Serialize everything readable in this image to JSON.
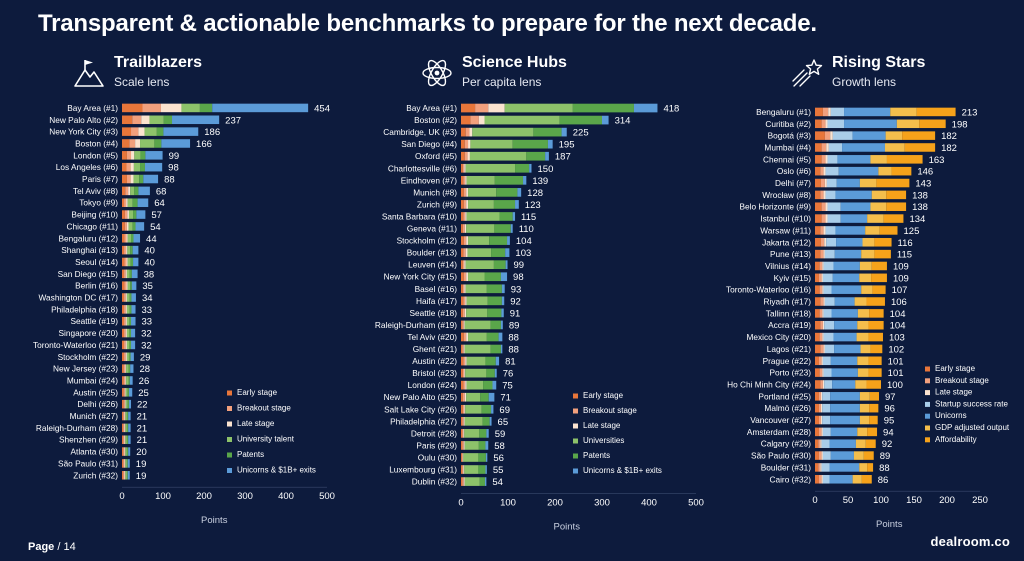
{
  "title": "Transparent & actionable benchmarks to prepare for the next decade.",
  "footer": {
    "page_label": "Page",
    "page_number": "/ 14",
    "brand": "dealroom.co"
  },
  "colors": {
    "early": "#e8763a",
    "breakout": "#f2a07d",
    "late": "#fbe3cf",
    "talent": "#8dc26a",
    "patents": "#5aa64a",
    "unicorns": "#5b9bd8",
    "startup": "#a9cde9",
    "gdp": "#f4be4c",
    "afford": "#f6a21a"
  },
  "chart_data": [
    {
      "type": "bar",
      "orientation": "horizontal",
      "stacked": true,
      "title": "Trailblazers",
      "subtitle": "Scale lens",
      "icon": "mountain-flag-icon",
      "xlabel": "Points",
      "xlim": [
        0,
        500
      ],
      "xticks": [
        0,
        100,
        200,
        300,
        400,
        500
      ],
      "legend_position": "bottom-right",
      "categories": [
        "Bay Area (#1)",
        "New Palo Alto (#2)",
        "New York City (#3)",
        "Boston (#4)",
        "London (#5)",
        "Los Angeles (#6)",
        "Paris (#7)",
        "Tel Aviv (#8)",
        "Tokyo (#9)",
        "Beijing (#10)",
        "Chicago (#11)",
        "Bengaluru (#12)",
        "Shanghai (#13)",
        "Seoul (#14)",
        "San Diego (#15)",
        "Berlin (#16)",
        "Washington DC (#17)",
        "Philadelphia (#18)",
        "Seattle (#19)",
        "Singapore (#20)",
        "Toronto-Waterloo (#21)",
        "Stockholm (#22)",
        "New Jersey (#23)",
        "Mumbai (#24)",
        "Austin (#25)",
        "Delhi (#26)",
        "Munich (#27)",
        "Raleigh-Durham (#28)",
        "Shenzhen (#29)",
        "Atlanta (#30)",
        "São Paulo (#31)",
        "Zurich (#32)"
      ],
      "totals": [
        454,
        237,
        186,
        166,
        99,
        98,
        88,
        68,
        64,
        57,
        54,
        44,
        40,
        40,
        38,
        35,
        34,
        33,
        33,
        32,
        32,
        29,
        28,
        26,
        25,
        22,
        21,
        21,
        21,
        20,
        19,
        19
      ],
      "series": [
        {
          "name": "Early stage",
          "key": "early",
          "values": [
            50,
            25,
            22,
            18,
            12,
            11,
            12,
            8,
            5,
            7,
            7,
            6,
            5,
            6,
            5,
            6,
            5,
            5,
            5,
            5,
            5,
            5,
            4,
            4,
            4,
            4,
            3,
            3,
            3,
            3,
            3,
            3
          ]
        },
        {
          "name": "Breakout stage",
          "key": "breakout",
          "values": [
            45,
            22,
            18,
            14,
            10,
            10,
            9,
            7,
            5,
            6,
            5,
            5,
            5,
            5,
            4,
            5,
            4,
            4,
            4,
            4,
            4,
            4,
            4,
            4,
            3,
            3,
            3,
            3,
            3,
            3,
            3,
            3
          ]
        },
        {
          "name": "Late stage",
          "key": "late",
          "values": [
            50,
            20,
            15,
            12,
            8,
            8,
            7,
            5,
            4,
            4,
            4,
            3,
            3,
            3,
            3,
            3,
            3,
            3,
            3,
            3,
            3,
            3,
            2,
            2,
            2,
            2,
            2,
            2,
            2,
            2,
            2,
            2
          ]
        },
        {
          "name": "University talent",
          "key": "talent",
          "values": [
            45,
            35,
            30,
            35,
            15,
            15,
            14,
            10,
            12,
            10,
            10,
            8,
            7,
            7,
            7,
            6,
            7,
            7,
            6,
            6,
            6,
            5,
            6,
            6,
            5,
            5,
            4,
            4,
            4,
            4,
            4,
            4
          ]
        },
        {
          "name": "Patents",
          "key": "patents",
          "values": [
            30,
            20,
            16,
            17,
            12,
            12,
            10,
            10,
            12,
            8,
            7,
            6,
            6,
            6,
            5,
            4,
            4,
            4,
            4,
            4,
            4,
            4,
            4,
            3,
            3,
            3,
            3,
            3,
            3,
            3,
            2,
            2
          ]
        },
        {
          "name": "Unicorns & $1B+ exits",
          "key": "unicorns",
          "values": [
            234,
            115,
            85,
            70,
            42,
            42,
            36,
            28,
            26,
            22,
            21,
            16,
            14,
            13,
            14,
            11,
            11,
            10,
            11,
            10,
            10,
            8,
            8,
            7,
            8,
            5,
            6,
            6,
            6,
            5,
            5,
            5
          ]
        }
      ]
    },
    {
      "type": "bar",
      "orientation": "horizontal",
      "stacked": true,
      "title": "Science Hubs",
      "subtitle": "Per capita lens",
      "icon": "atom-icon",
      "xlabel": "Points",
      "xlim": [
        0,
        500
      ],
      "xticks": [
        0,
        100,
        200,
        300,
        400,
        500
      ],
      "legend_position": "bottom-right",
      "categories": [
        "Bay Area (#1)",
        "Boston (#2)",
        "Cambridge, UK (#3)",
        "San Diego (#4)",
        "Oxford (#5)",
        "Charlottesville (#6)",
        "Eindhoven (#7)",
        "Munich (#8)",
        "Zurich (#9)",
        "Santa Barbara (#10)",
        "Geneva (#11)",
        "Stockholm (#12)",
        "Boulder (#13)",
        "Leuven (#14)",
        "New York City (#15)",
        "Basel (#16)",
        "Haifa (#17)",
        "Seattle (#18)",
        "Raleigh-Durham (#19)",
        "Tel Aviv (#20)",
        "Ghent (#21)",
        "Austin (#22)",
        "Bristol (#23)",
        "London (#24)",
        "New Palo Alto (#25)",
        "Salt Lake City (#26)",
        "Philadelphia (#27)",
        "Detroit (#28)",
        "Paris (#29)",
        "Oulu (#30)",
        "Luxembourg (#31)",
        "Dublin (#32)"
      ],
      "totals": [
        418,
        314,
        225,
        195,
        187,
        150,
        139,
        128,
        123,
        115,
        110,
        104,
        103,
        99,
        98,
        93,
        92,
        91,
        89,
        88,
        88,
        81,
        76,
        75,
        71,
        69,
        65,
        59,
        58,
        56,
        55,
        54
      ],
      "series": [
        {
          "name": "Early stage",
          "key": "early",
          "values": [
            30,
            20,
            10,
            8,
            8,
            4,
            5,
            6,
            6,
            5,
            4,
            6,
            5,
            4,
            6,
            4,
            5,
            4,
            3,
            6,
            3,
            5,
            4,
            5,
            4,
            4,
            3,
            3,
            3,
            2,
            3,
            3
          ]
        },
        {
          "name": "Breakout stage",
          "key": "breakout",
          "values": [
            28,
            18,
            8,
            7,
            6,
            3,
            4,
            5,
            5,
            4,
            4,
            5,
            5,
            3,
            5,
            3,
            4,
            4,
            3,
            5,
            3,
            4,
            3,
            4,
            4,
            3,
            3,
            2,
            3,
            2,
            2,
            3
          ]
        },
        {
          "name": "Late stage",
          "key": "late",
          "values": [
            35,
            12,
            6,
            5,
            5,
            3,
            3,
            4,
            4,
            3,
            3,
            4,
            4,
            3,
            4,
            3,
            3,
            3,
            2,
            4,
            2,
            3,
            2,
            3,
            3,
            2,
            2,
            2,
            2,
            1,
            2,
            2
          ]
        },
        {
          "name": "Universities",
          "key": "talent",
          "values": [
            145,
            160,
            130,
            90,
            120,
            105,
            60,
            60,
            55,
            70,
            60,
            45,
            50,
            60,
            35,
            45,
            45,
            45,
            55,
            40,
            55,
            40,
            45,
            35,
            30,
            35,
            38,
            32,
            30,
            32,
            30,
            32
          ]
        },
        {
          "name": "Patents",
          "key": "patents",
          "values": [
            130,
            90,
            60,
            75,
            40,
            30,
            60,
            45,
            45,
            28,
            35,
            38,
            30,
            25,
            35,
            32,
            30,
            30,
            22,
            25,
            22,
            22,
            18,
            20,
            18,
            20,
            15,
            15,
            14,
            16,
            15,
            11
          ]
        },
        {
          "name": "Unicorns & $1B+ exits",
          "key": "unicorns",
          "values": [
            50,
            14,
            11,
            10,
            8,
            5,
            7,
            8,
            8,
            5,
            4,
            6,
            9,
            4,
            13,
            6,
            5,
            5,
            4,
            8,
            3,
            7,
            4,
            8,
            12,
            5,
            4,
            5,
            6,
            3,
            3,
            3
          ]
        }
      ]
    },
    {
      "type": "bar",
      "orientation": "horizontal",
      "stacked": true,
      "title": "Rising Stars",
      "subtitle": "Growth lens",
      "icon": "shooting-star-icon",
      "xlabel": "Points",
      "xlim": [
        0,
        250
      ],
      "xticks": [
        0,
        50,
        100,
        150,
        200,
        250
      ],
      "legend_position": "bottom-right",
      "categories": [
        "Bengaluru (#1)",
        "Curitiba (#2)",
        "Bogotá (#3)",
        "Mumbai (#4)",
        "Chennai (#5)",
        "Oslo (#6)",
        "Delhi (#7)",
        "Wrocław (#8)",
        "Belo Horizonte (#9)",
        "Istanbul (#10)",
        "Warsaw (#11)",
        "Jakarta (#12)",
        "Pune (#13)",
        "Vilnius (#14)",
        "Kyiv (#15)",
        "Toronto-Waterloo (#16)",
        "Riyadh (#17)",
        "Tallinn (#18)",
        "Accra (#19)",
        "Mexico City (#20)",
        "Lagos (#21)",
        "Prague (#22)",
        "Porto (#23)",
        "Ho Chi Minh City (#24)",
        "Portland (#25)",
        "Malmö (#26)",
        "Vancouver (#27)",
        "Amsterdam (#28)",
        "Calgary (#29)",
        "São Paulo (#30)",
        "Boulder (#31)",
        "Cairo (#32)"
      ],
      "totals": [
        213,
        198,
        182,
        182,
        163,
        146,
        143,
        138,
        138,
        134,
        125,
        116,
        115,
        109,
        109,
        107,
        106,
        104,
        104,
        103,
        102,
        101,
        101,
        100,
        97,
        96,
        95,
        94,
        92,
        89,
        88,
        86
      ],
      "series": [
        {
          "name": "Early stage",
          "key": "early",
          "values": [
            12,
            10,
            15,
            10,
            10,
            8,
            9,
            8,
            10,
            10,
            8,
            9,
            8,
            7,
            6,
            7,
            8,
            7,
            8,
            7,
            8,
            6,
            7,
            8,
            6,
            6,
            6,
            6,
            5,
            6,
            5,
            6
          ]
        },
        {
          "name": "Breakout stage",
          "key": "breakout",
          "values": [
            8,
            6,
            8,
            7,
            6,
            5,
            6,
            5,
            6,
            6,
            5,
            5,
            5,
            4,
            4,
            4,
            5,
            4,
            4,
            4,
            5,
            4,
            4,
            4,
            3,
            3,
            3,
            4,
            3,
            4,
            3,
            4
          ]
        },
        {
          "name": "Late stage",
          "key": "late",
          "values": [
            4,
            3,
            4,
            4,
            3,
            3,
            3,
            3,
            3,
            3,
            3,
            3,
            2,
            2,
            2,
            2,
            2,
            2,
            2,
            2,
            2,
            2,
            2,
            2,
            2,
            2,
            2,
            2,
            2,
            2,
            2,
            2
          ]
        },
        {
          "name": "Startup success rate",
          "key": "startup",
          "values": [
            20,
            25,
            30,
            20,
            15,
            20,
            15,
            15,
            20,
            20,
            15,
            15,
            15,
            15,
            15,
            12,
            15,
            12,
            15,
            15,
            14,
            12,
            12,
            12,
            12,
            12,
            12,
            12,
            12,
            12,
            12,
            10
          ]
        },
        {
          "name": "Unicorns",
          "key": "unicorns",
          "values": [
            70,
            80,
            50,
            65,
            50,
            60,
            35,
            55,
            45,
            40,
            45,
            40,
            40,
            40,
            40,
            45,
            30,
            40,
            35,
            35,
            40,
            40,
            40,
            35,
            45,
            45,
            45,
            40,
            40,
            35,
            45,
            35
          ]
        },
        {
          "name": "GDP adjusted output",
          "key": "gdp",
          "values": [
            40,
            34,
            25,
            30,
            25,
            20,
            25,
            22,
            24,
            25,
            22,
            18,
            20,
            18,
            18,
            17,
            18,
            17,
            17,
            18,
            15,
            17,
            16,
            17,
            15,
            14,
            14,
            15,
            15,
            15,
            12,
            14
          ]
        },
        {
          "name": "Affordability",
          "key": "afford",
          "values": [
            59,
            40,
            50,
            46,
            54,
            30,
            50,
            30,
            30,
            30,
            27,
            26,
            25,
            23,
            24,
            20,
            28,
            22,
            23,
            22,
            18,
            20,
            20,
            22,
            14,
            14,
            13,
            15,
            15,
            15,
            9,
            15
          ]
        }
      ]
    }
  ]
}
